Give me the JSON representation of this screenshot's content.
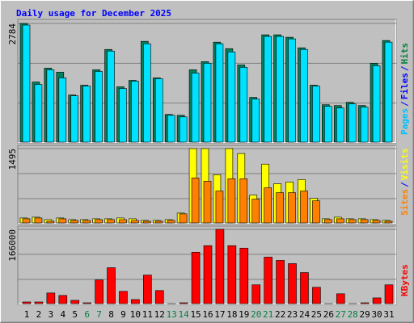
{
  "chart_data": [
    {
      "type": "bar",
      "title": "Daily usage for December 2025",
      "categories": [
        "1",
        "2",
        "3",
        "4",
        "5",
        "6",
        "7",
        "8",
        "9",
        "10",
        "11",
        "12",
        "13",
        "14",
        "15",
        "16",
        "17",
        "18",
        "19",
        "20",
        "21",
        "22",
        "23",
        "24",
        "25",
        "26",
        "27",
        "28",
        "29",
        "30",
        "31"
      ],
      "category_colors": [
        "#000000",
        "#000000",
        "#000000",
        "#000000",
        "#000000",
        "#008040",
        "#008040",
        "#000000",
        "#000000",
        "#000000",
        "#000000",
        "#000000",
        "#008040",
        "#008040",
        "#000000",
        "#000000",
        "#000000",
        "#000000",
        "#000000",
        "#008040",
        "#008040",
        "#000000",
        "#000000",
        "#000000",
        "#000000",
        "#000000",
        "#008040",
        "#008040",
        "#000000",
        "#000000",
        "#000000"
      ],
      "legend": [
        {
          "name": "Pages",
          "color": "#00c0ff"
        },
        {
          "name": "/",
          "color": "#0000ff"
        },
        {
          "name": "Files",
          "color": "#0000ff"
        },
        {
          "name": "/",
          "color": "#0000ff"
        },
        {
          "name": "Hits",
          "color": "#008040"
        }
      ],
      "ylim": [
        0,
        2784
      ],
      "yticks": [
        2784
      ],
      "series": [
        {
          "name": "Hits",
          "color": "#00805c",
          "values": [
            2784,
            1420,
            1742,
            1648,
            1117,
            1345,
            1704,
            2178,
            1307,
            1458,
            2367,
            1515,
            663,
            644,
            1704,
            1894,
            2348,
            2197,
            1818,
            1061,
            2519,
            2519,
            2462,
            2216,
            1345,
            890,
            871,
            947,
            871,
            1856,
            2386
          ]
        },
        {
          "name": "Pages",
          "color": "#00e0ff",
          "values": [
            2746,
            1363,
            1704,
            1515,
            1098,
            1326,
            1666,
            2140,
            1269,
            1439,
            2311,
            1496,
            644,
            606,
            1628,
            1856,
            2311,
            2121,
            1761,
            1023,
            2481,
            2481,
            2424,
            2178,
            1326,
            852,
            814,
            909,
            833,
            1799,
            2348
          ]
        }
      ]
    },
    {
      "type": "bar",
      "legend": [
        {
          "name": "Sites",
          "color": "#ff8000"
        },
        {
          "name": "/",
          "color": "#0000ff"
        },
        {
          "name": "Visits",
          "color": "#ffff00"
        }
      ],
      "ylim": [
        0,
        1495
      ],
      "yticks": [
        1495
      ],
      "series": [
        {
          "name": "Visits",
          "color": "#ffff00",
          "values": [
            114,
            130,
            81,
            114,
            81,
            81,
            98,
            98,
            114,
            98,
            65,
            65,
            81,
            211,
            1495,
            1495,
            975,
            1495,
            1397,
            569,
            1186,
            796,
            829,
            878,
            504,
            98,
            130,
            98,
            98,
            81,
            65
          ]
        },
        {
          "name": "Sites",
          "color": "#ff8000",
          "values": [
            98,
            114,
            49,
            98,
            65,
            65,
            81,
            81,
            81,
            65,
            49,
            49,
            65,
            195,
            910,
            845,
            650,
            894,
            894,
            488,
            715,
            618,
            618,
            650,
            455,
            81,
            98,
            81,
            81,
            65,
            49
          ]
        }
      ]
    },
    {
      "type": "bar",
      "legend": [
        {
          "name": "KBytes",
          "color": "#ff0000"
        }
      ],
      "ylim": [
        0,
        166000
      ],
      "yticks": [
        166000
      ],
      "series": [
        {
          "name": "KBytes",
          "color": "#ff0000",
          "values": [
            5400,
            5400,
            25300,
            19800,
            9000,
            3600,
            54100,
            81200,
            28900,
            10800,
            64900,
            30700,
            1800,
            3600,
            115500,
            129900,
            166000,
            129900,
            124500,
            43300,
            104600,
            97400,
            90200,
            70400,
            37900,
            1800,
            23500,
            1800,
            3600,
            14400,
            43300
          ]
        }
      ]
    }
  ]
}
